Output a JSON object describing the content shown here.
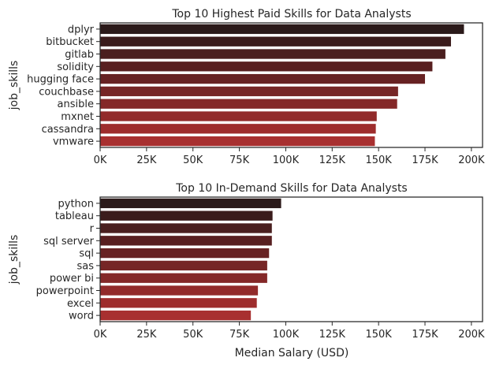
{
  "chart_data": [
    {
      "type": "bar",
      "orientation": "horizontal",
      "title": "Top 10 Highest Paid Skills for Data Analysts",
      "ylabel": "job_skills",
      "xlabel": "",
      "categories": [
        "dplyr",
        "bitbucket",
        "gitlab",
        "solidity",
        "hugging face",
        "couchbase",
        "ansible",
        "mxnet",
        "cassandra",
        "vmware"
      ],
      "values": [
        196000,
        189000,
        186000,
        179000,
        175000,
        160500,
        160000,
        149000,
        148500,
        148000
      ],
      "xlim": [
        0,
        206000
      ],
      "xticks": [
        0,
        25000,
        50000,
        75000,
        100000,
        125000,
        150000,
        175000,
        200000
      ],
      "xtick_labels": [
        "0K",
        "25K",
        "50K",
        "75K",
        "100K",
        "125K",
        "150K",
        "175K",
        "200K"
      ],
      "grid": false,
      "palette": "dark red gradient",
      "colors": [
        "#2b1a1a",
        "#3b1c1c",
        "#4a1f1f",
        "#581f20",
        "#672223",
        "#762626",
        "#842828",
        "#922b2b",
        "#9e2d2d",
        "#a83030"
      ]
    },
    {
      "type": "bar",
      "orientation": "horizontal",
      "title": "Top 10 In-Demand Skills for Data Analysts",
      "ylabel": "job_skills",
      "xlabel": "Median Salary (USD)",
      "categories": [
        "python",
        "tableau",
        "r",
        "sql server",
        "sql",
        "sas",
        "power bi",
        "powerpoint",
        "excel",
        "word"
      ],
      "values": [
        97500,
        92875,
        92500,
        92500,
        91000,
        90000,
        90000,
        85000,
        84392,
        81194
      ],
      "xlim": [
        0,
        206000
      ],
      "xticks": [
        0,
        25000,
        50000,
        75000,
        100000,
        125000,
        150000,
        175000,
        200000
      ],
      "xtick_labels": [
        "0K",
        "25K",
        "50K",
        "75K",
        "100K",
        "125K",
        "150K",
        "175K",
        "200K"
      ],
      "grid": false,
      "palette": "dark red gradient",
      "colors": [
        "#2b1a1a",
        "#3b1c1c",
        "#4a1f1f",
        "#581f20",
        "#672223",
        "#762626",
        "#842828",
        "#922b2b",
        "#9e2d2d",
        "#a83030"
      ]
    }
  ]
}
